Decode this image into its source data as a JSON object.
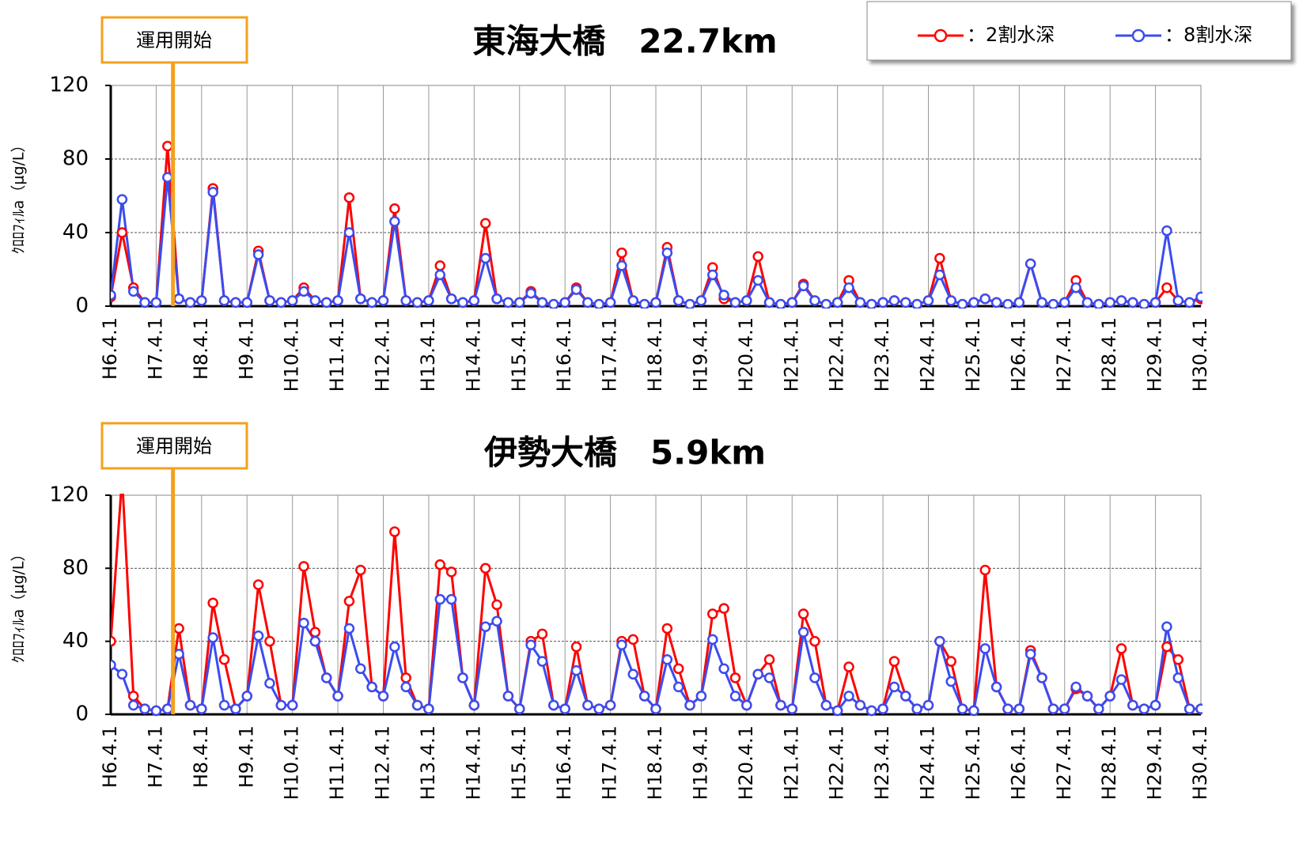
{
  "chart_data": [
    {
      "type": "line",
      "title": "東海大橋　22.7km",
      "ylabel": "ｸﾛﾛﾌｨﾙa（μg/L）",
      "annotation": "運用開始",
      "categories": [
        "H6.4.1",
        null,
        null,
        null,
        "H7.4.1",
        null,
        null,
        null,
        "H8.4.1",
        null,
        null,
        null,
        "H9.4.1",
        null,
        null,
        null,
        "H10.4.1",
        null,
        null,
        null,
        "H11.4.1",
        null,
        null,
        null,
        "H12.4.1",
        null,
        null,
        null,
        "H13.4.1",
        null,
        null,
        null,
        "H14.4.1",
        null,
        null,
        null,
        "H15.4.1",
        null,
        null,
        null,
        "H16.4.1",
        null,
        null,
        null,
        "H17.4.1",
        null,
        null,
        null,
        "H18.4.1",
        null,
        null,
        null,
        "H19.4.1",
        null,
        null,
        null,
        "H20.4.1",
        null,
        null,
        null,
        "H21.4.1",
        null,
        null,
        null,
        "H22.4.1",
        null,
        null,
        null,
        "H23.4.1",
        null,
        null,
        null,
        "H24.4.1",
        null,
        null,
        null,
        "H25.4.1",
        null,
        null,
        null,
        "H26.4.1",
        null,
        null,
        null,
        "H27.4.1",
        null,
        null,
        null,
        "H28.4.1",
        null,
        null,
        null,
        "H29.4.1",
        null,
        null,
        null,
        "H30.4.1"
      ],
      "series": [
        {
          "name": "：2割水深",
          "color": "#ff0000",
          "values": [
            5,
            40,
            10,
            2,
            2,
            87,
            4,
            2,
            3,
            64,
            3,
            2,
            2,
            30,
            3,
            2,
            3,
            10,
            3,
            2,
            3,
            59,
            4,
            2,
            3,
            53,
            3,
            2,
            3,
            22,
            4,
            2,
            3,
            45,
            4,
            2,
            2,
            8,
            2,
            1,
            2,
            10,
            2,
            1,
            2,
            29,
            3,
            1,
            2,
            32,
            3,
            1,
            3,
            21,
            4,
            2,
            3,
            27,
            2,
            1,
            2,
            12,
            3,
            1,
            2,
            14,
            2,
            1,
            2,
            3,
            2,
            1,
            3,
            26,
            3,
            1,
            2,
            4,
            2,
            1,
            2,
            23,
            2,
            1,
            2,
            14,
            2,
            1,
            2,
            3,
            2,
            1,
            2,
            10,
            3,
            2,
            4
          ]
        },
        {
          "name": "：8割水深",
          "color": "#3b4cf0",
          "values": [
            6,
            58,
            8,
            2,
            2,
            70,
            4,
            2,
            3,
            62,
            3,
            2,
            2,
            28,
            3,
            2,
            3,
            8,
            3,
            2,
            3,
            40,
            4,
            2,
            3,
            46,
            3,
            2,
            3,
            17,
            4,
            2,
            3,
            26,
            4,
            2,
            2,
            7,
            2,
            1,
            2,
            9,
            2,
            1,
            2,
            22,
            3,
            1,
            2,
            29,
            3,
            1,
            3,
            17,
            6,
            2,
            3,
            14,
            2,
            1,
            2,
            11,
            3,
            1,
            2,
            10,
            2,
            1,
            2,
            3,
            2,
            1,
            3,
            17,
            3,
            1,
            2,
            4,
            2,
            1,
            2,
            23,
            2,
            1,
            2,
            10,
            2,
            1,
            2,
            3,
            2,
            1,
            2,
            41,
            3,
            2,
            5
          ]
        }
      ],
      "ylim": [
        0,
        120
      ],
      "yticks": [
        0,
        40,
        80,
        120
      ],
      "grid": true
    },
    {
      "type": "line",
      "title": "伊勢大橋　5.9km",
      "ylabel": "ｸﾛﾛﾌｨﾙa（μg/L）",
      "annotation": "運用開始",
      "categories": [
        "H6.4.1",
        null,
        null,
        null,
        "H7.4.1",
        null,
        null,
        null,
        "H8.4.1",
        null,
        null,
        null,
        "H9.4.1",
        null,
        null,
        null,
        "H10.4.1",
        null,
        null,
        null,
        "H11.4.1",
        null,
        null,
        null,
        "H12.4.1",
        null,
        null,
        null,
        "H13.4.1",
        null,
        null,
        null,
        "H14.4.1",
        null,
        null,
        null,
        "H15.4.1",
        null,
        null,
        null,
        "H16.4.1",
        null,
        null,
        null,
        "H17.4.1",
        null,
        null,
        null,
        "H18.4.1",
        null,
        null,
        null,
        "H19.4.1",
        null,
        null,
        null,
        "H20.4.1",
        null,
        null,
        null,
        "H21.4.1",
        null,
        null,
        null,
        "H22.4.1",
        null,
        null,
        null,
        "H23.4.1",
        null,
        null,
        null,
        "H24.4.1",
        null,
        null,
        null,
        "H25.4.1",
        null,
        null,
        null,
        "H26.4.1",
        null,
        null,
        null,
        "H27.4.1",
        null,
        null,
        null,
        "H28.4.1",
        null,
        null,
        null,
        "H29.4.1",
        null,
        null,
        null,
        "H30.4.1"
      ],
      "series": [
        {
          "color": "#ff0000",
          "values": [
            40,
            130,
            10,
            3,
            2,
            3,
            47,
            5,
            3,
            61,
            30,
            3,
            10,
            71,
            40,
            5,
            5,
            81,
            45,
            20,
            10,
            62,
            79,
            15,
            10,
            100,
            20,
            5,
            3,
            82,
            78,
            20,
            5,
            80,
            60,
            10,
            3,
            40,
            44,
            5,
            3,
            37,
            5,
            3,
            5,
            40,
            41,
            10,
            3,
            47,
            25,
            5,
            10,
            55,
            58,
            20,
            5,
            22,
            30,
            5,
            3,
            55,
            40,
            5,
            2,
            26,
            5,
            2,
            3,
            29,
            10,
            3,
            5,
            40,
            29,
            3,
            2,
            79,
            15,
            3,
            3,
            35,
            20,
            3,
            3,
            14,
            10,
            3,
            10,
            36,
            5,
            3,
            5,
            37,
            30,
            3,
            3
          ]
        },
        {
          "color": "#3b4cf0",
          "values": [
            27,
            22,
            5,
            3,
            2,
            3,
            33,
            5,
            3,
            42,
            5,
            3,
            10,
            43,
            17,
            5,
            5,
            50,
            40,
            20,
            10,
            47,
            25,
            15,
            10,
            37,
            15,
            5,
            3,
            63,
            63,
            20,
            5,
            48,
            51,
            10,
            3,
            38,
            29,
            5,
            3,
            24,
            5,
            3,
            5,
            38,
            22,
            10,
            3,
            30,
            15,
            5,
            10,
            41,
            25,
            10,
            5,
            22,
            20,
            5,
            3,
            45,
            20,
            5,
            2,
            10,
            5,
            2,
            3,
            15,
            10,
            3,
            5,
            40,
            18,
            3,
            2,
            36,
            15,
            3,
            3,
            33,
            20,
            3,
            3,
            15,
            10,
            3,
            10,
            19,
            5,
            3,
            5,
            48,
            20,
            3,
            3
          ]
        }
      ],
      "ylim": [
        0,
        120
      ],
      "yticks": [
        0,
        40,
        80,
        120
      ],
      "grid": true
    }
  ]
}
